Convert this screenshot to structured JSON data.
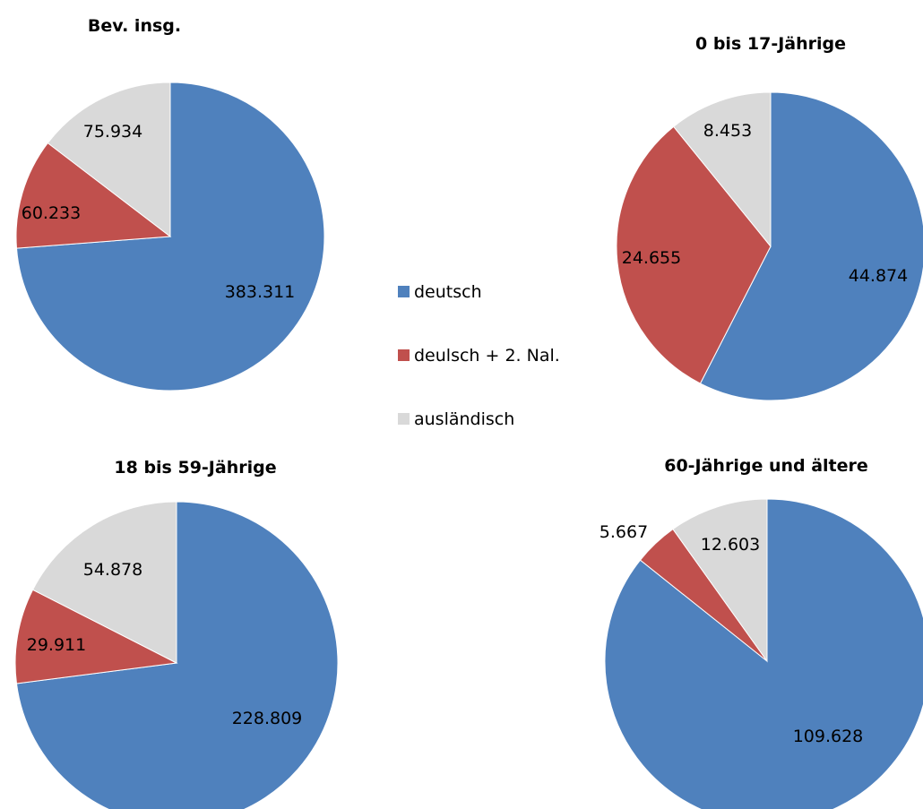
{
  "legend": {
    "items": [
      {
        "label": "deutsch",
        "color": "#4F81BD"
      },
      {
        "label": "deulsch + 2. Nal.",
        "color": "#C0504D"
      },
      {
        "label": "ausländisch",
        "color": "#D9D9D9"
      }
    ]
  },
  "chart_data": [
    {
      "type": "pie",
      "title": "Bev. insg.",
      "categories": [
        "deutsch",
        "deulsch + 2. Nal.",
        "ausländisch"
      ],
      "values": [
        383311,
        60233,
        75934
      ],
      "value_labels": [
        "383.311",
        "60.233",
        "75.934"
      ],
      "colors": [
        "#4F81BD",
        "#C0504D",
        "#D9D9D9"
      ],
      "legend_position": "center"
    },
    {
      "type": "pie",
      "title": "0 bis 17-Jährige",
      "categories": [
        "deutsch",
        "deulsch + 2. Nal.",
        "ausländisch"
      ],
      "values": [
        44874,
        24655,
        8453
      ],
      "value_labels": [
        "44.874",
        "24.655",
        "8.453"
      ],
      "colors": [
        "#4F81BD",
        "#C0504D",
        "#D9D9D9"
      ],
      "legend_position": "center"
    },
    {
      "type": "pie",
      "title": "18 bis 59-Jährige",
      "categories": [
        "deutsch",
        "deulsch + 2. Nal.",
        "ausländisch"
      ],
      "values": [
        228809,
        29911,
        54878
      ],
      "value_labels": [
        "228.809",
        "29.911",
        "54.878"
      ],
      "colors": [
        "#4F81BD",
        "#C0504D",
        "#D9D9D9"
      ],
      "legend_position": "center"
    },
    {
      "type": "pie",
      "title": "60-Jährige und ältere",
      "categories": [
        "deutsch",
        "deulsch + 2. Nal.",
        "ausländisch"
      ],
      "values": [
        109628,
        5667,
        12603
      ],
      "value_labels": [
        "109.628",
        "5.667",
        "12.603"
      ],
      "colors": [
        "#4F81BD",
        "#C0504D",
        "#D9D9D9"
      ],
      "legend_position": "center"
    }
  ]
}
